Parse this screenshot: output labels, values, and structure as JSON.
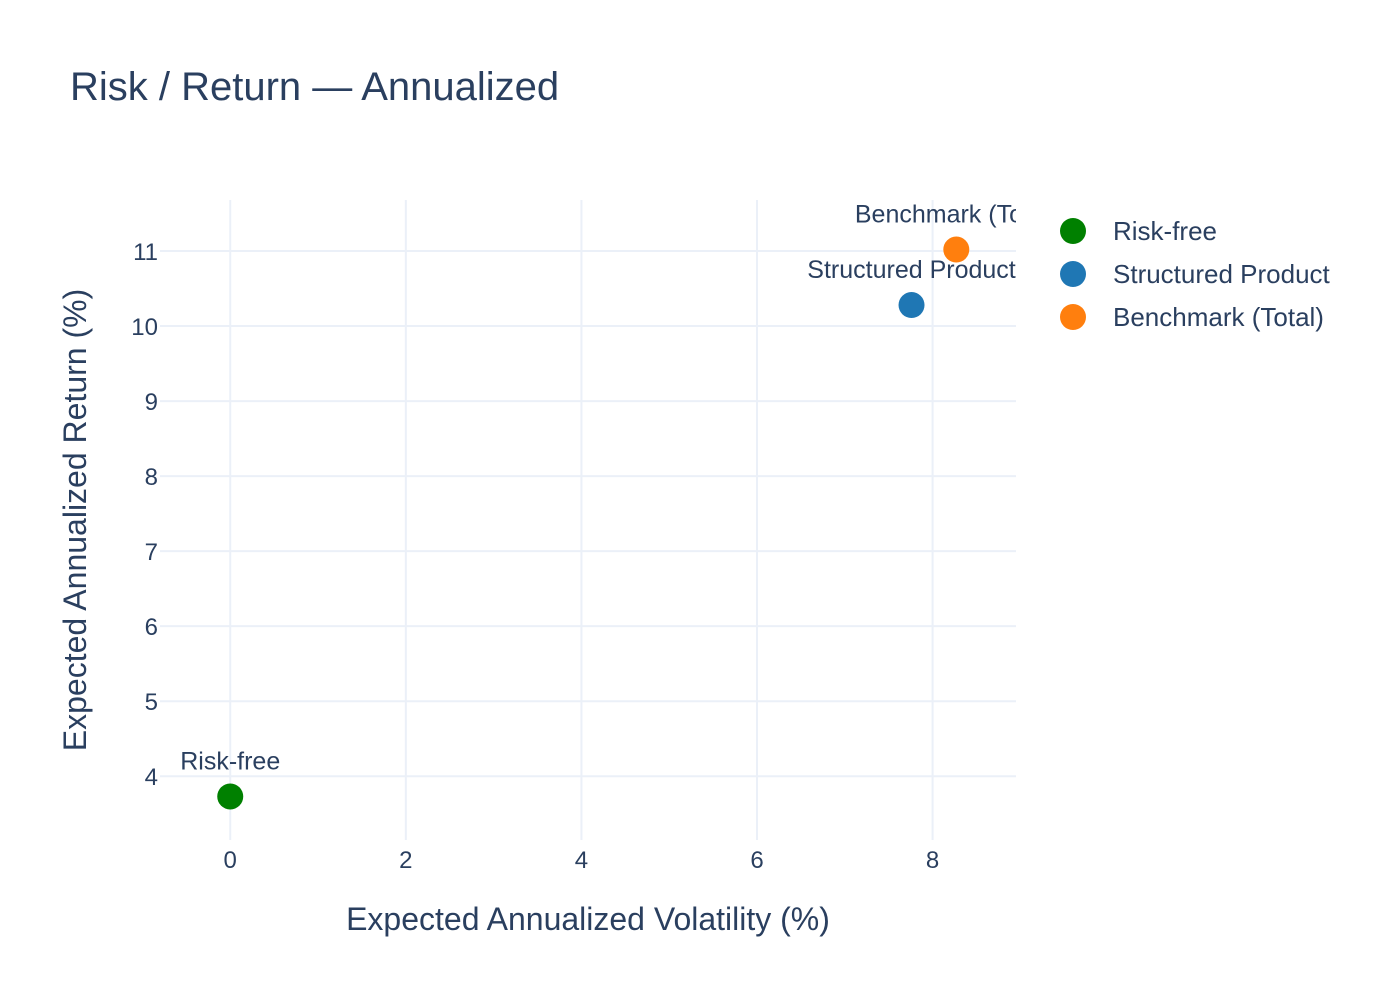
{
  "chart_data": {
    "type": "scatter",
    "title": "Risk / Return — Annualized",
    "xlabel": "Expected Annualized Volatility (%)",
    "ylabel": "Expected Annualized Return (%)",
    "xlim": [
      -0.8,
      8.95
    ],
    "ylim": [
      3.15,
      11.68
    ],
    "x_ticks": [
      0,
      2,
      4,
      6,
      8
    ],
    "y_ticks": [
      4,
      5,
      6,
      7,
      8,
      9,
      10,
      11
    ],
    "grid": true,
    "legend_position": "top-right",
    "series": [
      {
        "name": "Risk-free",
        "label": "Risk-free",
        "x": 0.0,
        "y": 3.73,
        "color": "#008000"
      },
      {
        "name": "Structured Product",
        "label": "Structured Product",
        "x": 7.76,
        "y": 10.28,
        "color": "#1f77b4"
      },
      {
        "name": "Benchmark (Total)",
        "label": "Benchmark (Total)",
        "x": 8.27,
        "y": 11.02,
        "color": "#ff7f0e"
      }
    ]
  }
}
